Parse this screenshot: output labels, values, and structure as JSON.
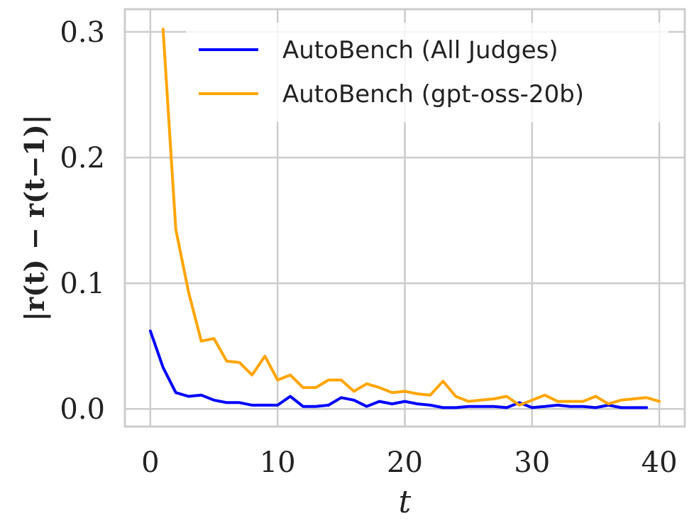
{
  "chart_data": {
    "type": "line",
    "xlabel": "t",
    "ylabel": "|r(t) − r(t−1)|",
    "xlim": [
      -2,
      42
    ],
    "ylim": [
      -0.014,
      0.318
    ],
    "xticks": [
      "0",
      "10",
      "20",
      "30",
      "40"
    ],
    "yticks": [
      "0.0",
      "0.1",
      "0.2",
      "0.3"
    ],
    "grid": true,
    "legend_position": "top-right",
    "series": [
      {
        "name": "AutoBench (All Judges)",
        "color": "#0000ff",
        "x": [
          0,
          1,
          2,
          3,
          4,
          5,
          6,
          7,
          8,
          9,
          10,
          11,
          12,
          13,
          14,
          15,
          16,
          17,
          18,
          19,
          20,
          21,
          22,
          23,
          24,
          25,
          26,
          27,
          28,
          29,
          30,
          31,
          32,
          33,
          34,
          35,
          36,
          37,
          38,
          39
        ],
        "y": [
          0.062,
          0.033,
          0.013,
          0.01,
          0.011,
          0.007,
          0.005,
          0.005,
          0.003,
          0.003,
          0.003,
          0.01,
          0.002,
          0.002,
          0.003,
          0.009,
          0.007,
          0.002,
          0.006,
          0.004,
          0.006,
          0.004,
          0.003,
          0.001,
          0.001,
          0.002,
          0.002,
          0.002,
          0.001,
          0.005,
          0.001,
          0.002,
          0.003,
          0.002,
          0.002,
          0.001,
          0.003,
          0.001,
          0.001,
          0.001
        ]
      },
      {
        "name": "AutoBench (gpt-oss-20b)",
        "color": "#ffa500",
        "x": [
          1,
          2,
          3,
          4,
          5,
          6,
          7,
          8,
          9,
          10,
          11,
          12,
          13,
          14,
          15,
          16,
          17,
          18,
          19,
          20,
          21,
          22,
          23,
          24,
          25,
          26,
          27,
          28,
          29,
          30,
          31,
          32,
          33,
          34,
          35,
          36,
          37,
          38,
          39,
          40
        ],
        "y": [
          0.302,
          0.143,
          0.093,
          0.054,
          0.056,
          0.038,
          0.037,
          0.027,
          0.042,
          0.023,
          0.027,
          0.017,
          0.017,
          0.023,
          0.023,
          0.014,
          0.02,
          0.017,
          0.013,
          0.014,
          0.012,
          0.011,
          0.022,
          0.01,
          0.006,
          0.007,
          0.008,
          0.01,
          0.003,
          0.007,
          0.011,
          0.006,
          0.006,
          0.006,
          0.01,
          0.004,
          0.007,
          0.008,
          0.009,
          0.006
        ]
      }
    ]
  }
}
